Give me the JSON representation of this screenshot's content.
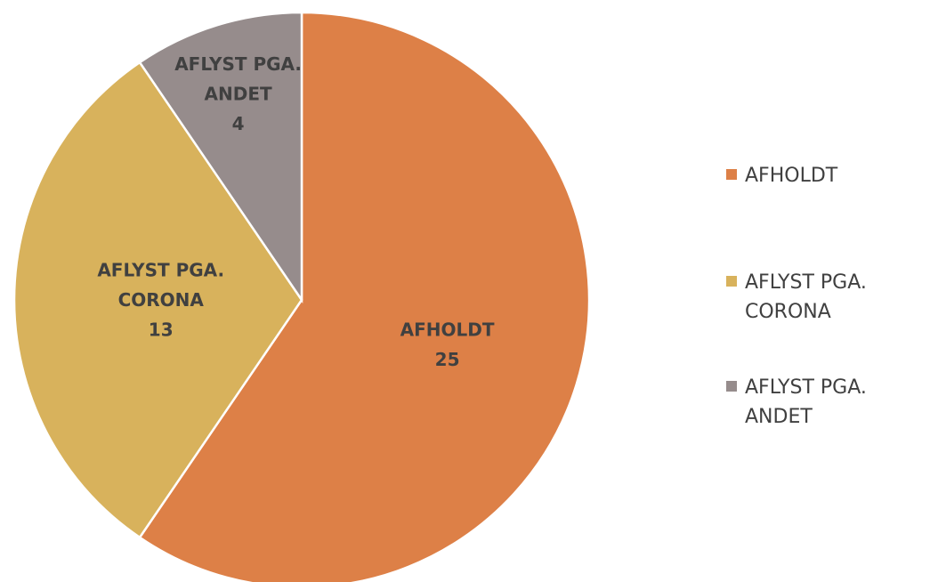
{
  "chart_data": {
    "type": "pie",
    "categories": [
      "AFHOLDT",
      "AFLYST PGA. CORONA",
      "AFLYST PGA. ANDET"
    ],
    "values": [
      25,
      13,
      4
    ],
    "colors": [
      "#dd8047",
      "#d8b25c",
      "#968c8c"
    ],
    "legend": "right"
  }
}
